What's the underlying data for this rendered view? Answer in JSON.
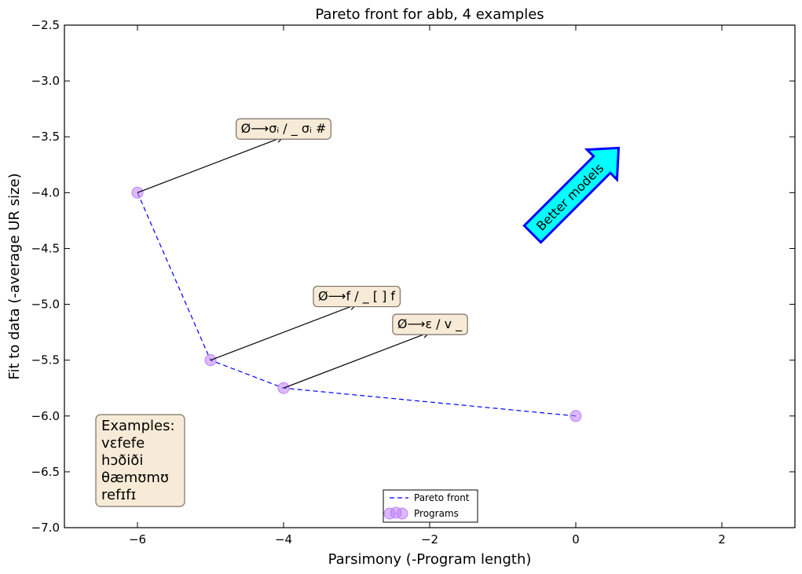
{
  "chart_data": {
    "type": "scatter",
    "title": "Pareto front for abb, 4 examples",
    "xlabel": "Parsimony (-Program length)",
    "ylabel": "Fit to data (-average UR size)",
    "xlim": [
      -7,
      3
    ],
    "ylim": [
      -7.0,
      -2.5
    ],
    "xticks": [
      -6,
      -4,
      -2,
      0,
      2
    ],
    "xtick_labels": [
      "−6",
      "−4",
      "−2",
      "0",
      "2"
    ],
    "yticks": [
      -2.5,
      -3.0,
      -3.5,
      -4.0,
      -4.5,
      -5.0,
      -5.5,
      -6.0,
      -6.5,
      -7.0
    ],
    "ytick_labels": [
      "−2.5",
      "−3.0",
      "−3.5",
      "−4.0",
      "−4.5",
      "−5.0",
      "−5.5",
      "−6.0",
      "−6.5",
      "−7.0"
    ],
    "grid": false,
    "legend_position": "bottom-center",
    "series": [
      {
        "name": "Pareto front",
        "style": "dashed-line",
        "color": "#0000ff",
        "x": [
          -6,
          -5,
          -4,
          0
        ],
        "y": [
          -4.0,
          -5.5,
          -5.75,
          -6.0
        ]
      },
      {
        "name": "Programs",
        "style": "markers",
        "color": "#bf80ff",
        "x": [
          -6,
          -5,
          -4,
          0
        ],
        "y": [
          -4.0,
          -5.5,
          -5.75,
          -6.0
        ]
      }
    ],
    "annotations": [
      {
        "text": "Ø⟶σᵢ /  _ σᵢ #",
        "from": [
          -6,
          -4.0
        ],
        "to": [
          -4.0,
          -3.5
        ]
      },
      {
        "text": "Ø⟶f /  _ [  ] f",
        "from": [
          -5,
          -5.5
        ],
        "to": [
          -3.0,
          -5.0
        ]
      },
      {
        "text": "Ø⟶ɛ / v _",
        "from": [
          -4,
          -5.75
        ],
        "to": [
          -2.0,
          -5.25
        ]
      }
    ],
    "better_arrow": {
      "text": "Better models",
      "color": "#00ffff",
      "edge_color": "#0000ff"
    },
    "examples_box": {
      "lines": [
        "Examples:",
        "vɛfefe",
        "hɔðiði",
        "θæmʊmʊ",
        "refɪfɪ"
      ]
    }
  }
}
